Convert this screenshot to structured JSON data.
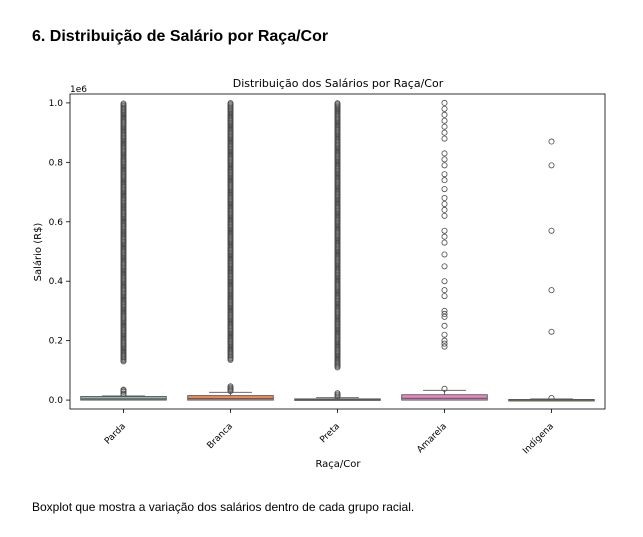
{
  "page": {
    "heading": "6. Distribuição de Salário por Raça/Cor",
    "caption": "Boxplot que mostra a variação dos salários dentro de cada grupo racial."
  },
  "chart_data": {
    "type": "boxplot",
    "title": "Distribuição dos Salários por Raça/Cor",
    "xlabel": "Raça/Cor",
    "ylabel": "Salário (R$)",
    "y_offset_label": "1e6",
    "ylim": [
      -0.03,
      1.03
    ],
    "yticks": [
      0.0,
      0.2,
      0.4,
      0.6,
      0.8,
      1.0
    ],
    "ytick_labels": [
      "0.0",
      "0.2",
      "0.4",
      "0.6",
      "0.8",
      "1.0"
    ],
    "grid": false,
    "categories": [
      "Parda",
      "Branca",
      "Preta",
      "Amarela",
      "Indígena"
    ],
    "colors": [
      "#8db8b0",
      "#f08a5d",
      "#8c9fca",
      "#e78ac3",
      "#a6d854"
    ],
    "boxes": [
      {
        "q1": 0.0,
        "median": 0.004,
        "q3": 0.012,
        "whisker_low": 0.0,
        "whisker_high": 0.014,
        "outliers_dense": [
          0.13,
          1.0
        ],
        "outliers": [
          0.018,
          0.022,
          0.028,
          0.032,
          0.035
        ]
      },
      {
        "q1": 0.0,
        "median": 0.005,
        "q3": 0.015,
        "whisker_low": 0.0,
        "whisker_high": 0.026,
        "outliers_dense": [
          0.135,
          1.0
        ],
        "outliers": [
          0.03,
          0.034,
          0.038,
          0.042,
          0.046
        ]
      },
      {
        "q1": 0.0,
        "median": 0.0015,
        "q3": 0.004,
        "whisker_low": 0.0,
        "whisker_high": 0.008,
        "outliers_dense": [
          0.11,
          1.0
        ],
        "outliers": [
          0.011,
          0.015,
          0.019,
          0.023
        ]
      },
      {
        "q1": 0.0,
        "median": 0.006,
        "q3": 0.018,
        "whisker_low": 0.0,
        "whisker_high": 0.033,
        "outliers_dense": [],
        "outliers": [
          0.038,
          0.18,
          0.19,
          0.2,
          0.22,
          0.25,
          0.28,
          0.29,
          0.3,
          0.35,
          0.37,
          0.4,
          0.45,
          0.49,
          0.53,
          0.55,
          0.57,
          0.62,
          0.64,
          0.66,
          0.68,
          0.71,
          0.74,
          0.76,
          0.79,
          0.81,
          0.83,
          0.88,
          0.9,
          0.92,
          0.94,
          0.96,
          0.98,
          1.0
        ]
      },
      {
        "q1": 0.0,
        "median": 0.0008,
        "q3": 0.002,
        "whisker_low": 0.0,
        "whisker_high": 0.004,
        "outliers_dense": [],
        "outliers": [
          0.007,
          0.23,
          0.37,
          0.57,
          0.79,
          0.87
        ]
      }
    ]
  }
}
